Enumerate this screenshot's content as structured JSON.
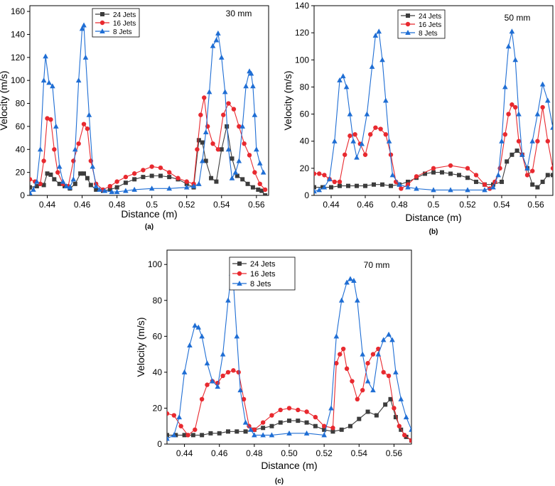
{
  "colors": {
    "jets24": "#3c3c3c",
    "jets16": "#e8292f",
    "jets8": "#1f6ed4",
    "axis": "#000000"
  },
  "chart_data": [
    {
      "type": "line",
      "panel_label": "(a)",
      "annotation": "30 mm",
      "xlabel": "Distance (m)",
      "ylabel": "Velocity (m/s)",
      "xlim": [
        0.43,
        0.567
      ],
      "ylim": [
        0,
        165
      ],
      "xticks": [
        "0.44",
        "0.46",
        "0.48",
        "0.5",
        "0.52",
        "0.54",
        "0.56"
      ],
      "yticks": [
        "0",
        "20",
        "40",
        "60",
        "80",
        "100",
        "120",
        "140",
        "160"
      ],
      "legend_position": "top-left",
      "series": [
        {
          "name": "24 Jets",
          "marker": "square",
          "x": [
            0.43,
            0.434,
            0.438,
            0.44,
            0.442,
            0.444,
            0.447,
            0.45,
            0.453,
            0.456,
            0.459,
            0.461,
            0.463,
            0.465,
            0.468,
            0.472,
            0.476,
            0.48,
            0.485,
            0.49,
            0.495,
            0.5,
            0.505,
            0.51,
            0.515,
            0.52,
            0.524,
            0.527,
            0.529,
            0.531,
            0.534,
            0.537,
            0.54,
            0.543,
            0.546,
            0.549,
            0.552,
            0.555,
            0.558,
            0.561,
            0.563,
            0.565
          ],
          "y": [
            7,
            8,
            9,
            19,
            18,
            14,
            10,
            8,
            6,
            10,
            19,
            19,
            15,
            9,
            5,
            4,
            5,
            7,
            11,
            14,
            16,
            17,
            17,
            16,
            14,
            10,
            7,
            48,
            46,
            30,
            15,
            12,
            40,
            60,
            32,
            17,
            14,
            10,
            7,
            5,
            4,
            0
          ]
        },
        {
          "name": "16 Jets",
          "marker": "circle",
          "x": [
            0.43,
            0.433,
            0.436,
            0.438,
            0.44,
            0.442,
            0.444,
            0.446,
            0.449,
            0.452,
            0.455,
            0.458,
            0.461,
            0.463,
            0.465,
            0.468,
            0.472,
            0.476,
            0.48,
            0.485,
            0.49,
            0.495,
            0.5,
            0.505,
            0.51,
            0.515,
            0.52,
            0.524,
            0.526,
            0.528,
            0.53,
            0.532,
            0.535,
            0.538,
            0.541,
            0.544,
            0.547,
            0.55,
            0.553,
            0.556,
            0.559,
            0.562,
            0.565
          ],
          "y": [
            14,
            12,
            10,
            30,
            67,
            66,
            40,
            20,
            10,
            8,
            30,
            45,
            62,
            58,
            30,
            10,
            5,
            8,
            12,
            16,
            19,
            22,
            25,
            24,
            20,
            15,
            12,
            10,
            40,
            70,
            85,
            60,
            45,
            40,
            70,
            80,
            75,
            60,
            45,
            35,
            20,
            10,
            5
          ]
        },
        {
          "name": "8 Jets",
          "marker": "triangle",
          "x": [
            0.43,
            0.432,
            0.434,
            0.436,
            0.438,
            0.439,
            0.441,
            0.443,
            0.445,
            0.447,
            0.449,
            0.451,
            0.453,
            0.455,
            0.456,
            0.458,
            0.46,
            0.461,
            0.462,
            0.464,
            0.466,
            0.468,
            0.47,
            0.473,
            0.477,
            0.48,
            0.485,
            0.49,
            0.5,
            0.51,
            0.52,
            0.524,
            0.527,
            0.529,
            0.531,
            0.533,
            0.535,
            0.537,
            0.538,
            0.54,
            0.542,
            0.544,
            0.546,
            0.548,
            0.55,
            0.552,
            0.554,
            0.556,
            0.557,
            0.558,
            0.559,
            0.56,
            0.562,
            0.564
          ],
          "y": [
            2,
            5,
            12,
            40,
            100,
            121,
            98,
            95,
            60,
            25,
            12,
            8,
            7,
            14,
            40,
            100,
            145,
            148,
            120,
            70,
            25,
            8,
            5,
            4,
            3,
            3,
            4,
            5,
            6,
            6,
            7,
            8,
            10,
            30,
            55,
            90,
            130,
            135,
            141,
            120,
            90,
            40,
            15,
            20,
            30,
            60,
            95,
            108,
            106,
            95,
            70,
            40,
            28,
            20
          ]
        }
      ]
    },
    {
      "type": "line",
      "panel_label": "(b)",
      "annotation": "50 mm",
      "xlabel": "Distance (m)",
      "ylabel": "Velocity (m/s)",
      "xlim": [
        0.43,
        0.57
      ],
      "ylim": [
        0,
        140
      ],
      "xticks": [
        "0.44",
        "0.46",
        "0.48",
        "0.5",
        "0.52",
        "0.54",
        "0.56"
      ],
      "yticks": [
        "0",
        "20",
        "40",
        "60",
        "80",
        "100",
        "120",
        "140"
      ],
      "legend_position": "top-left",
      "series": [
        {
          "name": "24 Jets",
          "marker": "square",
          "x": [
            0.43,
            0.435,
            0.44,
            0.445,
            0.45,
            0.455,
            0.46,
            0.465,
            0.47,
            0.475,
            0.48,
            0.485,
            0.49,
            0.495,
            0.5,
            0.505,
            0.51,
            0.515,
            0.52,
            0.525,
            0.53,
            0.535,
            0.54,
            0.543,
            0.546,
            0.549,
            0.552,
            0.555,
            0.558,
            0.561,
            0.564,
            0.567,
            0.57
          ],
          "y": [
            6,
            6,
            6,
            7,
            7,
            7,
            7,
            8,
            8,
            7,
            8,
            10,
            13,
            16,
            17,
            17,
            16,
            15,
            13,
            10,
            8,
            8,
            10,
            25,
            30,
            33,
            30,
            20,
            8,
            6,
            10,
            15,
            15
          ]
        },
        {
          "name": "16 Jets",
          "marker": "circle",
          "x": [
            0.43,
            0.433,
            0.436,
            0.439,
            0.442,
            0.445,
            0.448,
            0.451,
            0.454,
            0.457,
            0.46,
            0.463,
            0.466,
            0.469,
            0.472,
            0.475,
            0.478,
            0.481,
            0.485,
            0.49,
            0.5,
            0.51,
            0.52,
            0.525,
            0.53,
            0.533,
            0.536,
            0.539,
            0.542,
            0.544,
            0.546,
            0.548,
            0.55,
            0.552,
            0.555,
            0.558,
            0.561,
            0.564,
            0.567,
            0.57
          ],
          "y": [
            16,
            16,
            15,
            12,
            10,
            10,
            30,
            44,
            45,
            38,
            30,
            45,
            50,
            49,
            45,
            30,
            10,
            5,
            8,
            14,
            20,
            22,
            20,
            15,
            8,
            5,
            10,
            20,
            45,
            60,
            67,
            65,
            40,
            30,
            15,
            18,
            40,
            65,
            40,
            20
          ]
        },
        {
          "name": "8 Jets",
          "marker": "triangle",
          "x": [
            0.43,
            0.433,
            0.436,
            0.439,
            0.442,
            0.445,
            0.447,
            0.449,
            0.451,
            0.453,
            0.455,
            0.458,
            0.461,
            0.464,
            0.466,
            0.468,
            0.47,
            0.472,
            0.474,
            0.476,
            0.48,
            0.485,
            0.49,
            0.5,
            0.51,
            0.52,
            0.53,
            0.535,
            0.538,
            0.54,
            0.542,
            0.544,
            0.546,
            0.548,
            0.55,
            0.552,
            0.555,
            0.558,
            0.561,
            0.564,
            0.567,
            0.57
          ],
          "y": [
            3,
            4,
            6,
            12,
            40,
            85,
            88,
            80,
            60,
            40,
            28,
            38,
            60,
            95,
            118,
            121,
            100,
            70,
            40,
            15,
            8,
            6,
            5,
            4,
            4,
            4,
            4,
            6,
            15,
            40,
            80,
            110,
            121,
            100,
            60,
            30,
            20,
            40,
            60,
            82,
            70,
            50
          ]
        }
      ]
    },
    {
      "type": "line",
      "panel_label": "(c)",
      "annotation": "70 mm",
      "xlabel": "Distance (m)",
      "ylabel": "Velocity (m/s)",
      "xlim": [
        0.43,
        0.57
      ],
      "ylim": [
        0,
        108
      ],
      "xticks": [
        "0.44",
        "0.46",
        "0.48",
        "0.50",
        "0.52",
        "0.54",
        "0.56"
      ],
      "yticks": [
        "0",
        "20",
        "40",
        "60",
        "80",
        "100"
      ],
      "legend_position": "top-left",
      "series": [
        {
          "name": "24 Jets",
          "marker": "square",
          "x": [
            0.43,
            0.435,
            0.44,
            0.445,
            0.45,
            0.455,
            0.46,
            0.465,
            0.47,
            0.475,
            0.48,
            0.485,
            0.49,
            0.495,
            0.5,
            0.505,
            0.51,
            0.515,
            0.52,
            0.525,
            0.53,
            0.535,
            0.54,
            0.545,
            0.55,
            0.555,
            0.558,
            0.561,
            0.564,
            0.567,
            0.57
          ],
          "y": [
            5,
            5,
            5,
            5,
            5,
            6,
            6,
            7,
            7,
            7,
            8,
            9,
            10,
            12,
            13,
            13,
            12,
            10,
            8,
            7,
            8,
            10,
            14,
            18,
            16,
            22,
            25,
            15,
            8,
            4,
            2
          ]
        },
        {
          "name": "16 Jets",
          "marker": "circle",
          "x": [
            0.43,
            0.434,
            0.438,
            0.442,
            0.446,
            0.45,
            0.453,
            0.456,
            0.459,
            0.462,
            0.465,
            0.468,
            0.471,
            0.474,
            0.477,
            0.48,
            0.485,
            0.49,
            0.495,
            0.5,
            0.505,
            0.51,
            0.515,
            0.52,
            0.525,
            0.527,
            0.529,
            0.531,
            0.533,
            0.536,
            0.539,
            0.542,
            0.545,
            0.548,
            0.551,
            0.554,
            0.557,
            0.56,
            0.563,
            0.566,
            0.57
          ],
          "y": [
            17,
            16,
            10,
            5,
            8,
            25,
            33,
            35,
            34,
            38,
            40,
            41,
            40,
            25,
            10,
            8,
            12,
            16,
            19,
            20,
            19,
            18,
            15,
            10,
            9,
            45,
            50,
            53,
            42,
            35,
            25,
            30,
            45,
            50,
            53,
            40,
            38,
            20,
            10,
            5,
            2
          ]
        },
        {
          "name": "8 Jets",
          "marker": "triangle",
          "x": [
            0.43,
            0.434,
            0.437,
            0.44,
            0.443,
            0.446,
            0.448,
            0.45,
            0.453,
            0.456,
            0.459,
            0.462,
            0.465,
            0.467,
            0.468,
            0.47,
            0.472,
            0.475,
            0.478,
            0.48,
            0.485,
            0.49,
            0.5,
            0.51,
            0.52,
            0.524,
            0.527,
            0.53,
            0.533,
            0.535,
            0.537,
            0.539,
            0.542,
            0.545,
            0.548,
            0.551,
            0.554,
            0.557,
            0.559,
            0.561,
            0.564,
            0.567,
            0.57
          ],
          "y": [
            3,
            5,
            15,
            40,
            55,
            66,
            65,
            60,
            45,
            35,
            32,
            50,
            80,
            95,
            90,
            60,
            30,
            12,
            8,
            5,
            5,
            5,
            6,
            6,
            5,
            20,
            60,
            80,
            90,
            92,
            91,
            80,
            50,
            35,
            30,
            50,
            58,
            61,
            58,
            40,
            25,
            15,
            8
          ]
        }
      ]
    }
  ]
}
